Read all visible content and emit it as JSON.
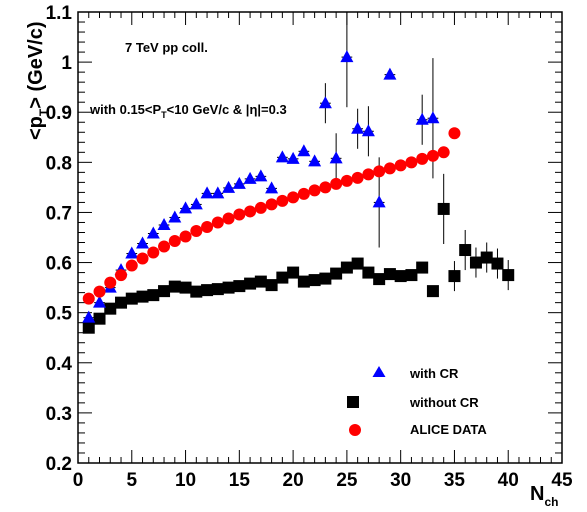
{
  "chart_data": {
    "type": "scatter",
    "xlabel": "N",
    "xlabel_sub": "ch",
    "ylabel": "<p",
    "ylabel_sub": "T",
    "ylabel_tail": "> (GeV/c)",
    "xlim": [
      0,
      45
    ],
    "ylim": [
      0.2,
      1.1
    ],
    "x_ticks": [
      0,
      5,
      10,
      15,
      20,
      25,
      30,
      35,
      40,
      45
    ],
    "y_ticks": [
      0.2,
      0.3,
      0.4,
      0.5,
      0.6,
      0.7,
      0.8,
      0.9,
      1,
      1.1
    ],
    "y_tick_labels": [
      "0.2",
      "0.3",
      "0.4",
      "0.5",
      "0.6",
      "0.7",
      "0.8",
      "0.9",
      "1",
      "1.1"
    ],
    "annotations": {
      "line1": "7 TeV pp coll.",
      "line2_a": "with 0.15<P",
      "line2_sub": "T",
      "line2_b": "<10 GeV/c & |η|=0.3"
    },
    "legend_position": "bottom-right",
    "series": [
      {
        "name": "with CR",
        "marker": "triangle",
        "color": "#0000ff",
        "points": [
          {
            "x": 1,
            "y": 0.49
          },
          {
            "x": 2,
            "y": 0.52
          },
          {
            "x": 3,
            "y": 0.55
          },
          {
            "x": 4,
            "y": 0.585
          },
          {
            "x": 5,
            "y": 0.618
          },
          {
            "x": 6,
            "y": 0.638
          },
          {
            "x": 7,
            "y": 0.658
          },
          {
            "x": 8,
            "y": 0.675
          },
          {
            "x": 9,
            "y": 0.69
          },
          {
            "x": 10,
            "y": 0.708
          },
          {
            "x": 11,
            "y": 0.716
          },
          {
            "x": 12,
            "y": 0.738
          },
          {
            "x": 13,
            "y": 0.738
          },
          {
            "x": 14,
            "y": 0.749
          },
          {
            "x": 15,
            "y": 0.757
          },
          {
            "x": 16,
            "y": 0.767
          },
          {
            "x": 17,
            "y": 0.772
          },
          {
            "x": 18,
            "y": 0.748
          },
          {
            "x": 19,
            "y": 0.81
          },
          {
            "x": 20,
            "y": 0.807
          },
          {
            "x": 21,
            "y": 0.822
          },
          {
            "x": 22,
            "y": 0.802
          },
          {
            "x": 23,
            "y": 0.918,
            "err": 0.04
          },
          {
            "x": 24,
            "y": 0.808,
            "err": 0.05
          },
          {
            "x": 25,
            "y": 1.01,
            "err": 0.1
          },
          {
            "x": 26,
            "y": 0.867,
            "err": 0.04
          },
          {
            "x": 27,
            "y": 0.862,
            "err": 0.05
          },
          {
            "x": 28,
            "y": 0.72,
            "err": 0.09
          },
          {
            "x": 29,
            "y": 0.975
          },
          {
            "x": 32,
            "y": 0.885,
            "err": 0.05
          },
          {
            "x": 33,
            "y": 0.888,
            "err": 0.12
          }
        ]
      },
      {
        "name": "without CR",
        "marker": "square",
        "color": "#000000",
        "points": [
          {
            "x": 1,
            "y": 0.47
          },
          {
            "x": 2,
            "y": 0.488
          },
          {
            "x": 3,
            "y": 0.508
          },
          {
            "x": 4,
            "y": 0.52
          },
          {
            "x": 5,
            "y": 0.528
          },
          {
            "x": 6,
            "y": 0.532
          },
          {
            "x": 7,
            "y": 0.535
          },
          {
            "x": 8,
            "y": 0.543
          },
          {
            "x": 9,
            "y": 0.552
          },
          {
            "x": 10,
            "y": 0.55
          },
          {
            "x": 11,
            "y": 0.542
          },
          {
            "x": 12,
            "y": 0.545
          },
          {
            "x": 13,
            "y": 0.547
          },
          {
            "x": 14,
            "y": 0.55
          },
          {
            "x": 15,
            "y": 0.553
          },
          {
            "x": 16,
            "y": 0.558
          },
          {
            "x": 17,
            "y": 0.562
          },
          {
            "x": 18,
            "y": 0.555
          },
          {
            "x": 19,
            "y": 0.57
          },
          {
            "x": 20,
            "y": 0.58
          },
          {
            "x": 21,
            "y": 0.562
          },
          {
            "x": 22,
            "y": 0.565
          },
          {
            "x": 23,
            "y": 0.568
          },
          {
            "x": 24,
            "y": 0.578
          },
          {
            "x": 25,
            "y": 0.59
          },
          {
            "x": 26,
            "y": 0.598
          },
          {
            "x": 27,
            "y": 0.58
          },
          {
            "x": 28,
            "y": 0.567
          },
          {
            "x": 29,
            "y": 0.577
          },
          {
            "x": 30,
            "y": 0.573
          },
          {
            "x": 31,
            "y": 0.575
          },
          {
            "x": 32,
            "y": 0.59
          },
          {
            "x": 33,
            "y": 0.543
          },
          {
            "x": 34,
            "y": 0.707,
            "err": 0.07
          },
          {
            "x": 35,
            "y": 0.573,
            "err": 0.03
          },
          {
            "x": 36,
            "y": 0.625,
            "err": 0.04
          },
          {
            "x": 37,
            "y": 0.6,
            "err": 0.03
          },
          {
            "x": 38,
            "y": 0.61,
            "err": 0.03
          },
          {
            "x": 39,
            "y": 0.598,
            "err": 0.03
          },
          {
            "x": 40,
            "y": 0.575,
            "err": 0.03
          }
        ]
      },
      {
        "name": "ALICE DATA",
        "marker": "circle",
        "color": "#ff0000",
        "points": [
          {
            "x": 1,
            "y": 0.528
          },
          {
            "x": 2,
            "y": 0.542
          },
          {
            "x": 3,
            "y": 0.56
          },
          {
            "x": 4,
            "y": 0.575
          },
          {
            "x": 5,
            "y": 0.594
          },
          {
            "x": 6,
            "y": 0.608
          },
          {
            "x": 7,
            "y": 0.62
          },
          {
            "x": 8,
            "y": 0.632
          },
          {
            "x": 9,
            "y": 0.643
          },
          {
            "x": 10,
            "y": 0.652
          },
          {
            "x": 11,
            "y": 0.663
          },
          {
            "x": 12,
            "y": 0.671
          },
          {
            "x": 13,
            "y": 0.68
          },
          {
            "x": 14,
            "y": 0.688
          },
          {
            "x": 15,
            "y": 0.696
          },
          {
            "x": 16,
            "y": 0.702
          },
          {
            "x": 17,
            "y": 0.709
          },
          {
            "x": 18,
            "y": 0.716
          },
          {
            "x": 19,
            "y": 0.723
          },
          {
            "x": 20,
            "y": 0.73
          },
          {
            "x": 21,
            "y": 0.737
          },
          {
            "x": 22,
            "y": 0.744
          },
          {
            "x": 23,
            "y": 0.75
          },
          {
            "x": 24,
            "y": 0.757
          },
          {
            "x": 25,
            "y": 0.763
          },
          {
            "x": 26,
            "y": 0.769
          },
          {
            "x": 27,
            "y": 0.776
          },
          {
            "x": 28,
            "y": 0.782
          },
          {
            "x": 29,
            "y": 0.788
          },
          {
            "x": 30,
            "y": 0.794
          },
          {
            "x": 31,
            "y": 0.8
          },
          {
            "x": 32,
            "y": 0.807
          },
          {
            "x": 33,
            "y": 0.813
          },
          {
            "x": 34,
            "y": 0.82
          },
          {
            "x": 35,
            "y": 0.858
          }
        ]
      }
    ]
  }
}
